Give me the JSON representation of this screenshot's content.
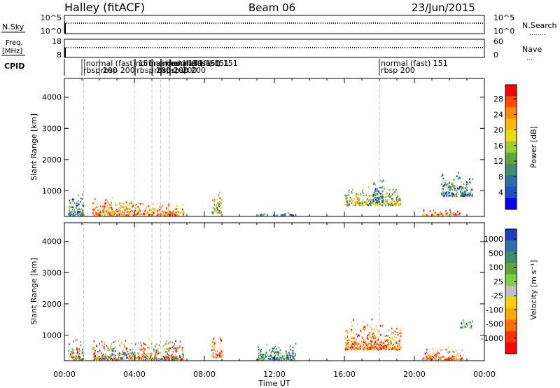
{
  "header": {
    "station": "Halley (fitACF)",
    "beam": "Beam 06",
    "date": "23/Jun/2015"
  },
  "strips": {
    "nsky": {
      "label": "N.Sky",
      "left_ticks": [
        "10^5",
        "10^0"
      ],
      "right_ticks": [
        "10^5",
        "10^0"
      ],
      "right_label": "N.Search",
      "right_dots": "........"
    },
    "freq": {
      "label": "Freq.",
      "unit": "[MHz]",
      "left_ticks": [
        "18",
        "8"
      ],
      "right_ticks": [
        "60",
        "0"
      ],
      "right_label": "Nave",
      "right_dots": "...."
    },
    "cpid": {
      "label": "CPID"
    }
  },
  "modes": [
    {
      "label": "rbsp 200",
      "t": 1.0,
      "row": 1
    },
    {
      "label": "normal (fast) 151",
      "t": 1.15,
      "row": 0
    },
    {
      "label": "rbsp 200",
      "t": 2.0,
      "row": 1
    },
    {
      "label": "normal (fast) 151",
      "t": 4.0,
      "row": 0
    },
    {
      "label": "rbsp 200",
      "t": 4.05,
      "row": 1
    },
    {
      "label": "normal (fast) 151",
      "t": 5.0,
      "row": 0
    },
    {
      "label": "rbsp 200",
      "t": 5.05,
      "row": 1
    },
    {
      "label": "normal (fast) 151",
      "t": 5.5,
      "row": 0
    },
    {
      "label": "rbsp 200",
      "t": 5.55,
      "row": 1
    },
    {
      "label": "normal (fast) 151",
      "t": 6.0,
      "row": 0
    },
    {
      "label": "rbsp 200",
      "t": 6.05,
      "row": 1
    },
    {
      "label": "normal (fast) 151",
      "t": 18.0,
      "row": 0
    },
    {
      "label": "rbsp 200",
      "t": 18.0,
      "row": 1
    }
  ],
  "chart_data": {
    "type": "heatmap",
    "xlabel": "Time UT",
    "x_ticks": [
      "00:00",
      "04:00",
      "08:00",
      "12:00",
      "16:00",
      "20:00",
      "00:00"
    ],
    "xlim_hours": [
      0,
      24
    ],
    "mode_change_hours": [
      1.1,
      4.0,
      5.0,
      5.5,
      6.0,
      18.0
    ],
    "panels": [
      {
        "name": "power",
        "ylabel": "Slant Range [km]",
        "ylim": [
          180,
          4600
        ],
        "y_ticks": [
          1000,
          2000,
          3000,
          4000
        ],
        "colorbar": {
          "label": "Power [dB]",
          "ticks": [
            "28",
            "24",
            "20",
            "16",
            "12",
            "8",
            "4"
          ],
          "colors": [
            "#ff0000",
            "#ff4a00",
            "#ff8a00",
            "#ffb800",
            "#e8dc10",
            "#9bcc30",
            "#5aa838",
            "#3d8c6a",
            "#2b6fa8",
            "#1e50c8",
            "#0000ff"
          ]
        },
        "echo_regions": [
          {
            "t0": 0.2,
            "t1": 1.1,
            "r0": 180,
            "r1": 950,
            "level": "low"
          },
          {
            "t0": 1.6,
            "t1": 4.3,
            "r0": 180,
            "r1": 800,
            "level": "high"
          },
          {
            "t0": 4.3,
            "t1": 6.8,
            "r0": 180,
            "r1": 600,
            "level": "high"
          },
          {
            "t0": 8.4,
            "t1": 9.0,
            "r0": 250,
            "r1": 1000,
            "level": "mid"
          },
          {
            "t0": 11.0,
            "t1": 13.2,
            "r0": 180,
            "r1": 280,
            "level": "low"
          },
          {
            "t0": 16.0,
            "t1": 19.2,
            "r0": 500,
            "r1": 1150,
            "level": "mid"
          },
          {
            "t0": 17.6,
            "t1": 18.2,
            "r0": 600,
            "r1": 1550,
            "level": "low"
          },
          {
            "t0": 20.4,
            "t1": 22.6,
            "r0": 180,
            "r1": 400,
            "level": "high"
          },
          {
            "t0": 21.5,
            "t1": 23.3,
            "r0": 800,
            "r1": 1600,
            "level": "low"
          }
        ]
      },
      {
        "name": "velocity",
        "ylabel": "Slant Range [km]",
        "ylim": [
          180,
          4600
        ],
        "y_ticks": [
          1000,
          2000,
          3000,
          4000
        ],
        "colorbar": {
          "label": "Velocity [m s⁻¹]",
          "ticks": [
            "1000",
            "500",
            "100",
            "25",
            "-25",
            "-100",
            "-500",
            "-1000"
          ],
          "colors": [
            "#1e3cc8",
            "#2b6fa8",
            "#3d8c6a",
            "#5aa838",
            "#7dd040",
            "#c0c0c0",
            "#ffd000",
            "#ffa800",
            "#ff7000",
            "#ff3000",
            "#ff0000"
          ]
        },
        "echo_regions": [
          {
            "t0": 0.2,
            "t1": 1.1,
            "r0": 180,
            "r1": 900,
            "level": "mixed"
          },
          {
            "t0": 1.6,
            "t1": 6.8,
            "r0": 180,
            "r1": 900,
            "level": "mixed"
          },
          {
            "t0": 8.4,
            "t1": 9.0,
            "r0": 250,
            "r1": 1000,
            "level": "neg"
          },
          {
            "t0": 11.0,
            "t1": 13.2,
            "r0": 180,
            "r1": 800,
            "level": "pos"
          },
          {
            "t0": 16.0,
            "t1": 19.2,
            "r0": 500,
            "r1": 1500,
            "level": "neg"
          },
          {
            "t0": 20.4,
            "t1": 22.8,
            "r0": 180,
            "r1": 600,
            "level": "neg"
          },
          {
            "t0": 22.6,
            "t1": 23.3,
            "r0": 1200,
            "r1": 1500,
            "level": "pos"
          }
        ]
      }
    ]
  }
}
